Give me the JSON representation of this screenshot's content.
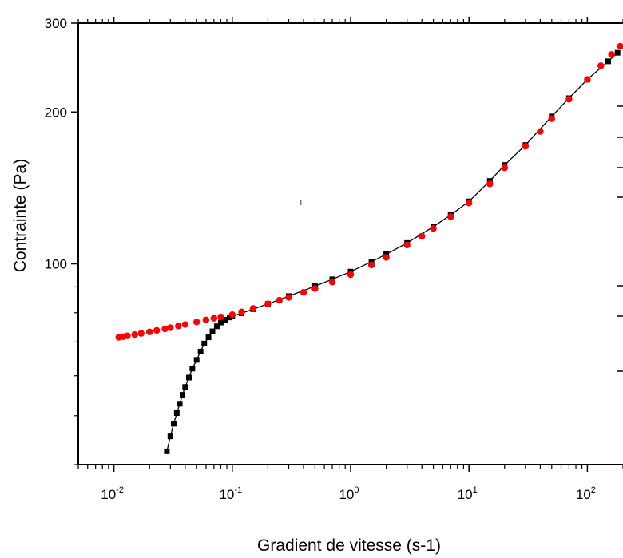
{
  "chart_data": {
    "type": "line",
    "xlabel": "Gradient de vitesse (s-1)",
    "ylabel": "Contrainte (Pa)",
    "x_scale": "log",
    "y_scale": "log",
    "xlim": [
      0.005,
      200
    ],
    "ylim": [
      40,
      300
    ],
    "x_ticks": [
      {
        "value": 0.01,
        "base": "10",
        "exp": "-2"
      },
      {
        "value": 0.1,
        "base": "10",
        "exp": "-1"
      },
      {
        "value": 1,
        "base": "10",
        "exp": "0"
      },
      {
        "value": 10,
        "base": "10",
        "exp": "1"
      },
      {
        "value": 100,
        "base": "10",
        "exp": "2"
      }
    ],
    "y_ticks": [
      {
        "value": 100,
        "label": "100"
      },
      {
        "value": 200,
        "label": "200"
      },
      {
        "value": 300,
        "label": "300"
      }
    ],
    "grid": false,
    "legend": "none",
    "series": [
      {
        "color": "#000000",
        "marker": "square",
        "line": true,
        "x": [
          0.028,
          0.03,
          0.032,
          0.034,
          0.036,
          0.038,
          0.04,
          0.043,
          0.046,
          0.05,
          0.054,
          0.058,
          0.063,
          0.068,
          0.074,
          0.08,
          0.087,
          0.095,
          0.1,
          0.12,
          0.15,
          0.2,
          0.3,
          0.5,
          0.7,
          1.0,
          1.5,
          2.0,
          3.0,
          5.0,
          7.0,
          10.0,
          15.0,
          20.0,
          30.0,
          50.0,
          70.0,
          100.0,
          150.0,
          180.0
        ],
        "y": [
          42.5,
          45.5,
          48.2,
          50.6,
          52.8,
          55.0,
          57.0,
          59.5,
          62.0,
          64.5,
          67.0,
          69.5,
          71.5,
          73.5,
          75.2,
          76.5,
          77.5,
          78.3,
          78.7,
          79.8,
          81.3,
          83.3,
          86.3,
          90.3,
          93.2,
          96.5,
          101.0,
          104.5,
          110.0,
          118.5,
          125.0,
          133.0,
          146.0,
          157.0,
          172.0,
          196.0,
          213.0,
          232.0,
          252.0,
          262.0
        ]
      },
      {
        "color": "#ff0000",
        "marker": "circle",
        "line": false,
        "x": [
          0.011,
          0.012,
          0.013,
          0.015,
          0.017,
          0.02,
          0.023,
          0.027,
          0.03,
          0.035,
          0.04,
          0.05,
          0.06,
          0.07,
          0.08,
          0.1,
          0.12,
          0.15,
          0.2,
          0.25,
          0.3,
          0.4,
          0.5,
          0.7,
          1.0,
          1.5,
          2.0,
          3.0,
          4.0,
          5.0,
          7.0,
          10.0,
          15.0,
          20.0,
          30.0,
          40.0,
          50.0,
          70.0,
          100.0,
          130.0,
          160.0,
          190.0
        ],
        "y": [
          71.5,
          71.7,
          72.0,
          72.4,
          72.8,
          73.3,
          73.8,
          74.3,
          74.7,
          75.3,
          75.8,
          76.7,
          77.4,
          78.0,
          78.5,
          79.3,
          80.3,
          81.6,
          83.3,
          84.7,
          85.8,
          87.8,
          89.3,
          92.0,
          95.2,
          99.5,
          103.0,
          109.0,
          113.5,
          117.5,
          124.0,
          132.0,
          144.0,
          155.0,
          171.0,
          183.0,
          194.0,
          212.0,
          232.0,
          247.0,
          260.0,
          270.0
        ]
      }
    ]
  }
}
